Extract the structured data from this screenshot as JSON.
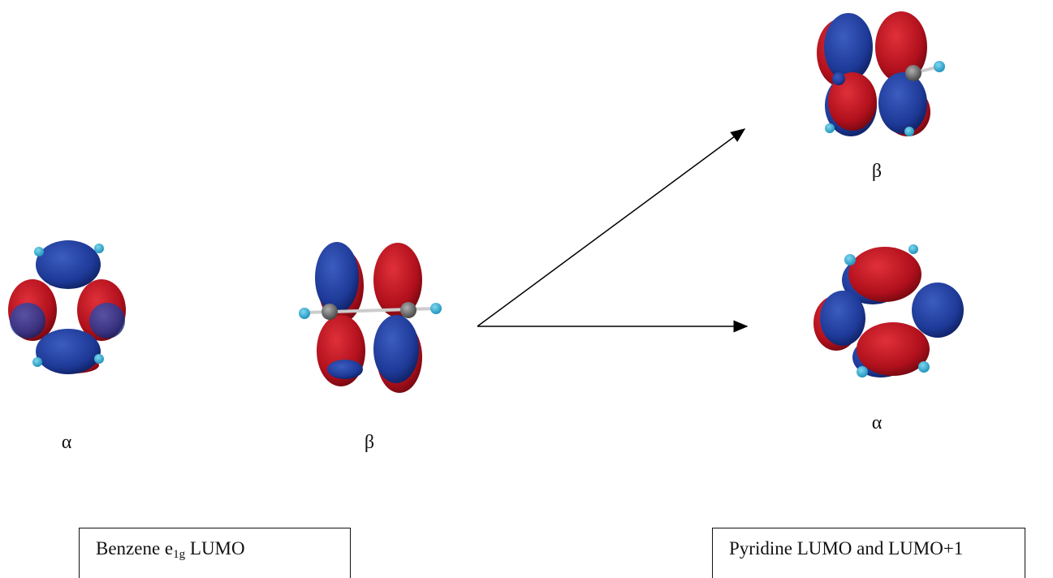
{
  "molecules": [
    {
      "label": "α"
    },
    {
      "label": "β"
    },
    {
      "label": "β"
    },
    {
      "label": "α"
    }
  ],
  "captions": [
    {
      "text": "Benzene e",
      "subscript": "1g",
      "suffix": " LUMO"
    },
    {
      "text": "Pyridine LUMO and LUMO+1"
    }
  ]
}
